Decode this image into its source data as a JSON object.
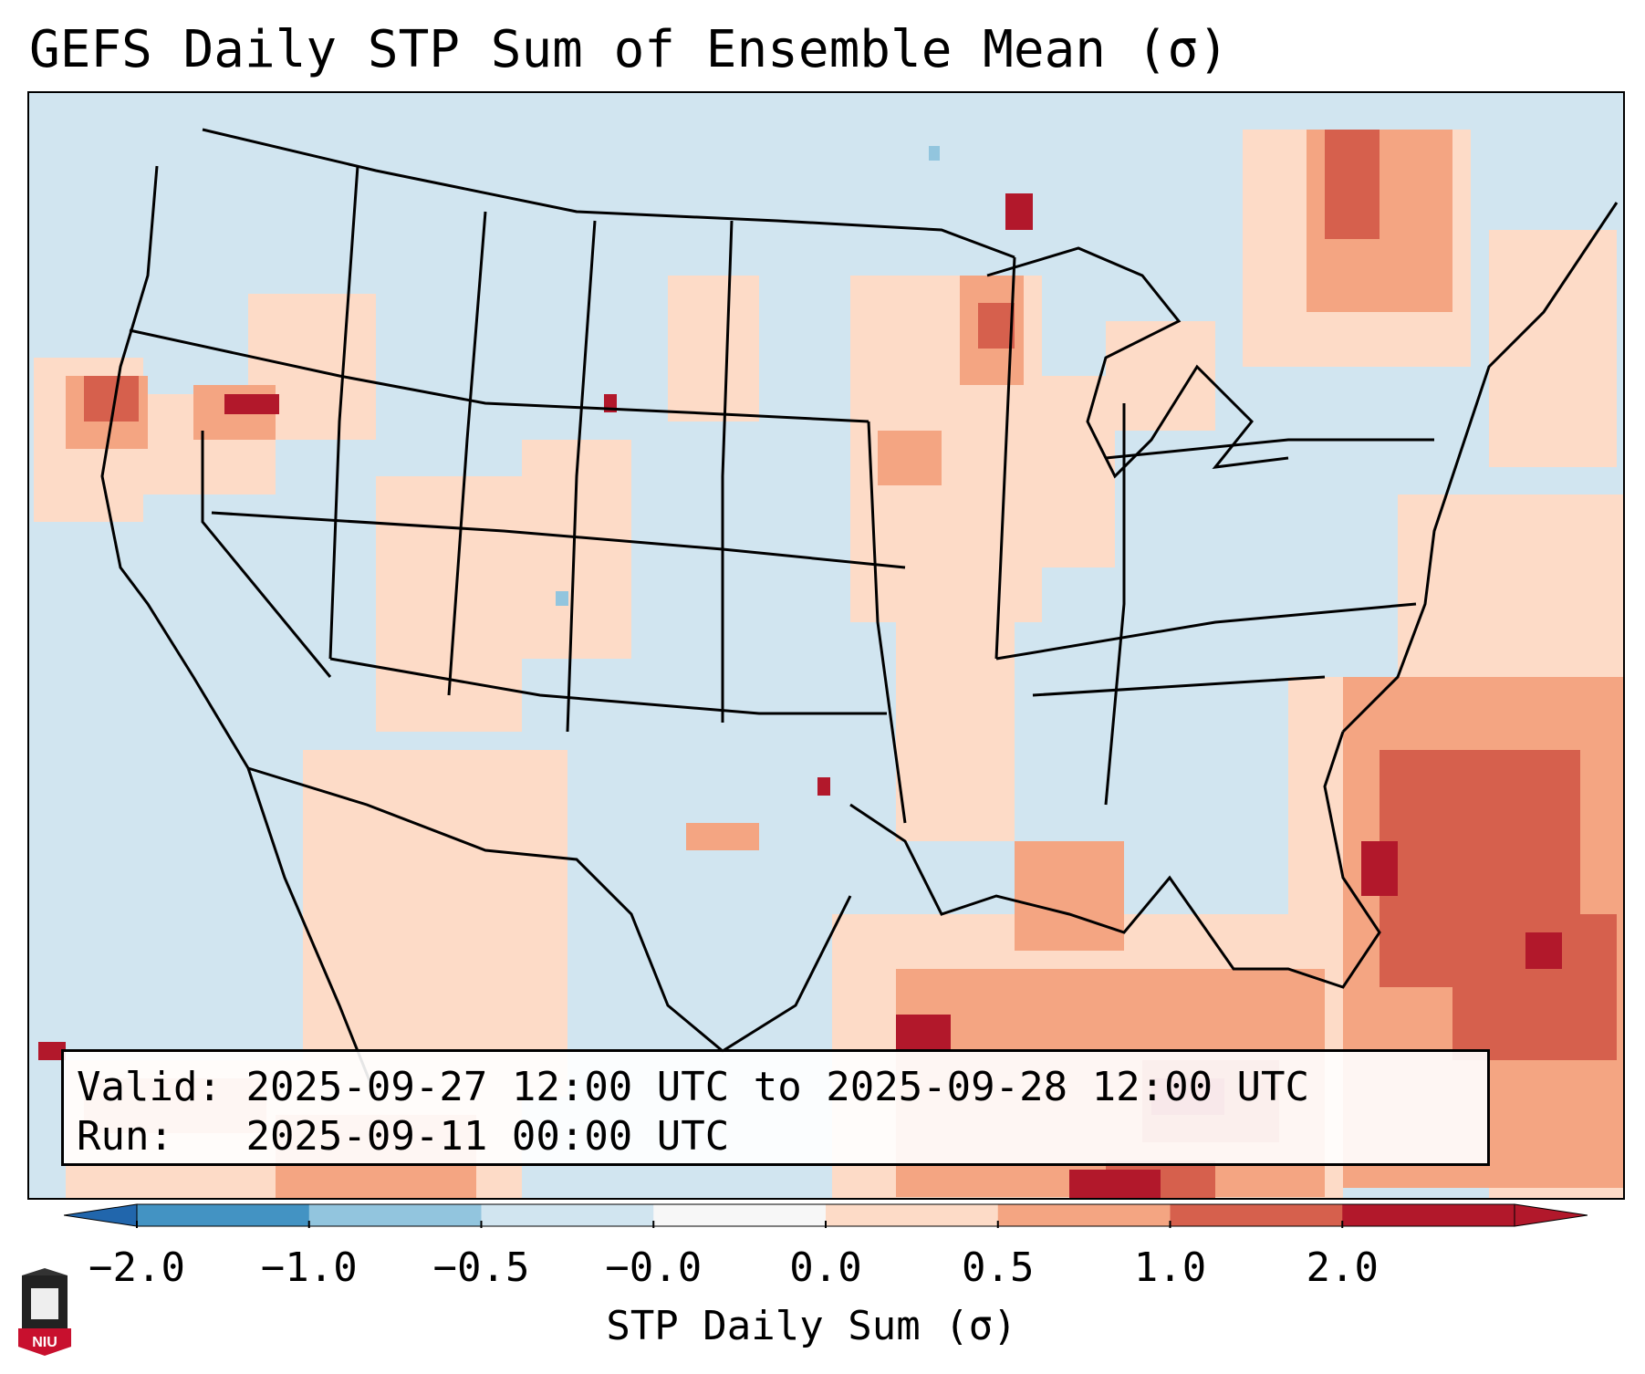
{
  "title": "GEFS Daily STP Sum of Ensemble Mean (σ)",
  "info": {
    "valid_label": "Valid:",
    "valid_value": "2025-09-27 12:00 UTC to 2025-09-28 12:00 UTC",
    "run_label": "Run:",
    "run_value": "2025-09-11 00:00 UTC"
  },
  "colorbar": {
    "label": "STP Daily Sum (σ)",
    "ticks": [
      "−2.0",
      "−1.0",
      "−0.5",
      "−0.0",
      "0.0",
      "0.5",
      "1.0",
      "2.0"
    ],
    "colors": [
      "#4393c3",
      "#92c5de",
      "#d1e5f0",
      "#f7f7f7",
      "#fddbc7",
      "#f4a582",
      "#d6604d",
      "#b2182b"
    ],
    "under_color": "#2166ac",
    "over_color": "#b2182b"
  },
  "logo": {
    "text": "NIU",
    "icon": "niu-logo-icon"
  },
  "map": {
    "ocean_color": "#d1e5f0",
    "border_color": "#000000"
  }
}
